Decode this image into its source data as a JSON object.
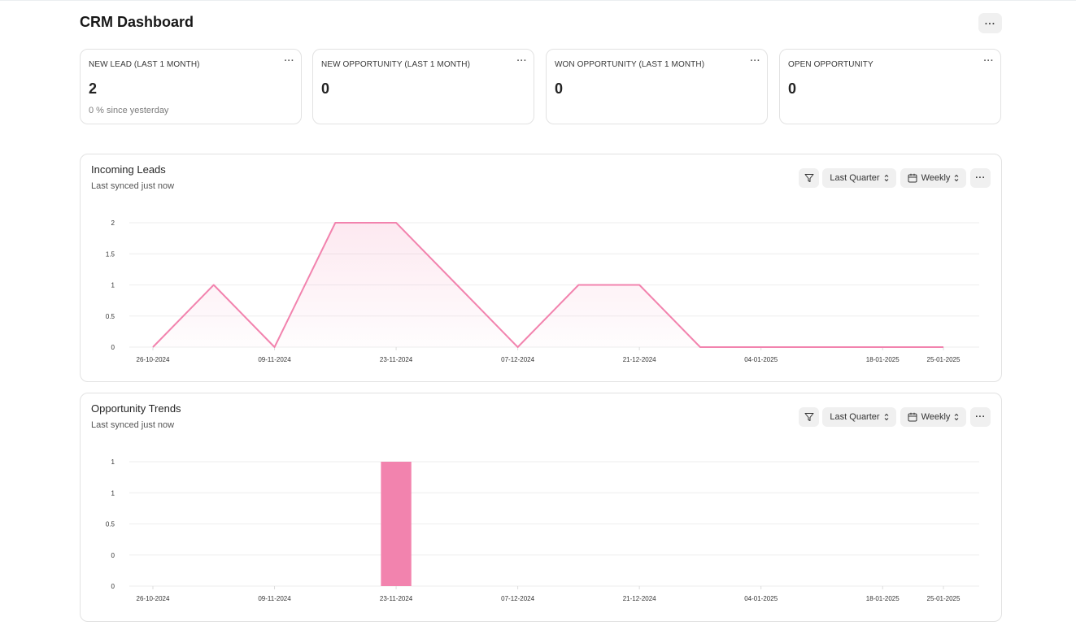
{
  "page": {
    "title": "CRM Dashboard",
    "more_label": "···"
  },
  "cards": [
    {
      "label": "NEW LEAD (LAST 1 MONTH)",
      "value": "2",
      "sub": "0 % since yesterday",
      "more": "···"
    },
    {
      "label": "NEW OPPORTUNITY (LAST 1 MONTH)",
      "value": "0",
      "sub": "",
      "more": "···"
    },
    {
      "label": "WON OPPORTUNITY (LAST 1 MONTH)",
      "value": "0",
      "sub": "",
      "more": "···"
    },
    {
      "label": "OPEN OPPORTUNITY",
      "value": "0",
      "sub": "",
      "more": "···"
    }
  ],
  "panels": [
    {
      "title": "Incoming Leads",
      "subtitle": "Last synced just now",
      "range_label": "Last Quarter",
      "period_label": "Weekly",
      "more_label": "···"
    },
    {
      "title": "Opportunity Trends",
      "subtitle": "Last synced just now",
      "range_label": "Last Quarter",
      "period_label": "Weekly",
      "more_label": "···"
    }
  ],
  "colors": {
    "accent": "#f283ae",
    "grid": "#eeeeee"
  },
  "chart_data": [
    {
      "type": "area",
      "title": "Incoming Leads",
      "x": [
        "26-10-2024",
        "02-11-2024",
        "09-11-2024",
        "16-11-2024",
        "23-11-2024",
        "30-11-2024",
        "07-12-2024",
        "14-12-2024",
        "21-12-2024",
        "28-12-2024",
        "04-01-2025",
        "11-01-2025",
        "18-01-2025",
        "25-01-2025"
      ],
      "x_tick_labels": [
        "26-10-2024",
        "09-11-2024",
        "23-11-2024",
        "07-12-2024",
        "21-12-2024",
        "04-01-2025",
        "18-01-2025",
        "25-01-2025"
      ],
      "y_tick_labels": [
        "0",
        "0.5",
        "1",
        "1.5",
        "2"
      ],
      "values": [
        0,
        1,
        0,
        2,
        2,
        1,
        0,
        1,
        1,
        0,
        0,
        0,
        0,
        0
      ],
      "ylim": [
        0,
        2
      ],
      "grid": true,
      "color": "#f283ae"
    },
    {
      "type": "bar",
      "title": "Opportunity Trends",
      "x": [
        "26-10-2024",
        "02-11-2024",
        "09-11-2024",
        "16-11-2024",
        "23-11-2024",
        "30-11-2024",
        "07-12-2024",
        "14-12-2024",
        "21-12-2024",
        "28-12-2024",
        "04-01-2025",
        "11-01-2025",
        "18-01-2025",
        "25-01-2025"
      ],
      "x_tick_labels": [
        "26-10-2024",
        "09-11-2024",
        "23-11-2024",
        "07-12-2024",
        "21-12-2024",
        "04-01-2025",
        "18-01-2025",
        "25-01-2025"
      ],
      "y_tick_labels": [
        "0",
        "0",
        "0.5",
        "1",
        "1"
      ],
      "values": [
        0,
        0,
        0,
        0,
        1,
        0,
        0,
        0,
        0,
        0,
        0,
        0,
        0,
        0
      ],
      "ylim": [
        0,
        1
      ],
      "grid": true,
      "color": "#f283ae"
    }
  ]
}
